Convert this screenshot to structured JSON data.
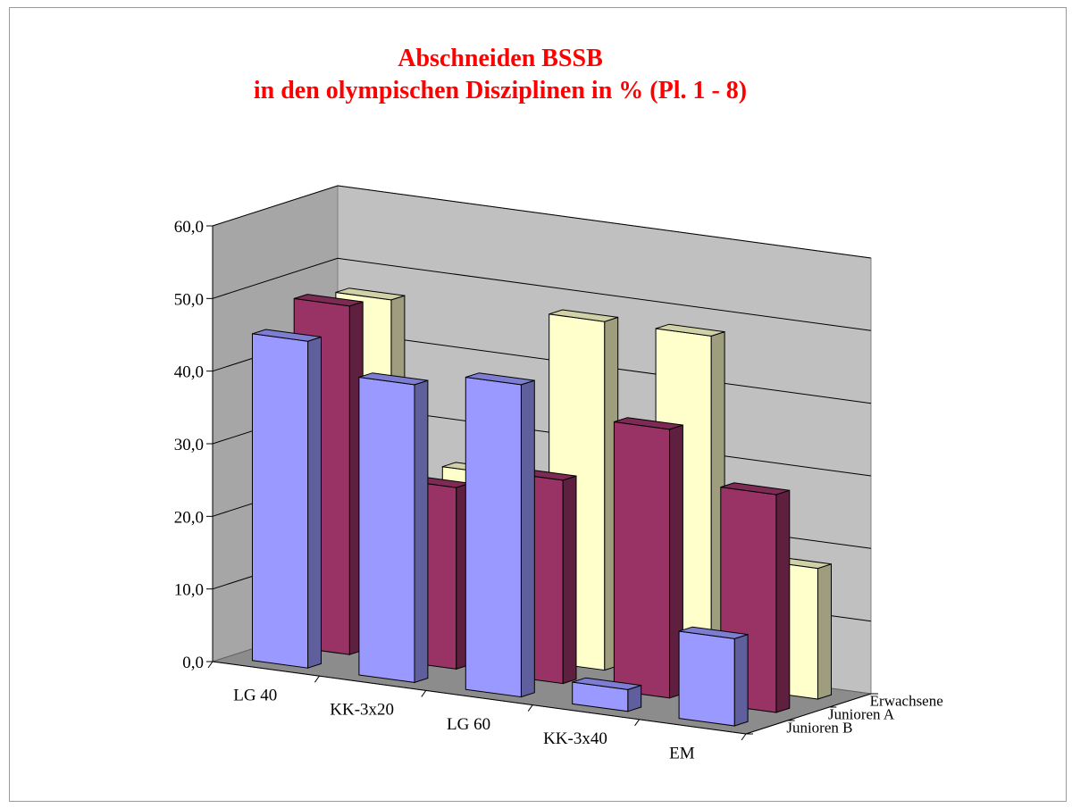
{
  "chart_data": {
    "type": "bar",
    "title": "Abschneiden BSSB",
    "subtitle": "in den olympischen Disziplinen in % (Pl. 1 - 8)",
    "categories": [
      "LG 40",
      "KK-3x20",
      "LG 60",
      "KK-3x40",
      "EM"
    ],
    "series": [
      {
        "name": "Junioren B",
        "values": [
          45,
          41,
          43,
          3,
          12
        ],
        "color": "#9999ff"
      },
      {
        "name": "Junioren A",
        "values": [
          48,
          25,
          28,
          37,
          30
        ],
        "color": "#993366"
      },
      {
        "name": "Erwachsene",
        "values": [
          47,
          25,
          48,
          48,
          18
        ],
        "color": "#ffffcc"
      }
    ],
    "ylim": [
      0,
      60
    ],
    "yticks": [
      "0,0",
      "10,0",
      "20,0",
      "30,0",
      "40,0",
      "50,0",
      "60,0"
    ],
    "grid": true,
    "three_d": true
  }
}
